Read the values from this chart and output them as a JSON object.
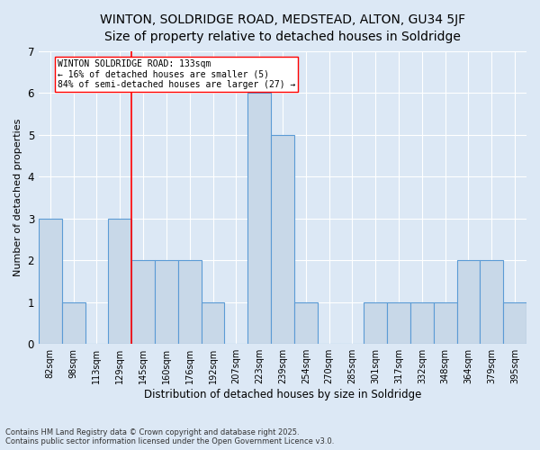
{
  "title1": "WINTON, SOLDRIDGE ROAD, MEDSTEAD, ALTON, GU34 5JF",
  "title2": "Size of property relative to detached houses in Soldridge",
  "xlabel": "Distribution of detached houses by size in Soldridge",
  "ylabel": "Number of detached properties",
  "footnote1": "Contains HM Land Registry data © Crown copyright and database right 2025.",
  "footnote2": "Contains public sector information licensed under the Open Government Licence v3.0.",
  "categories": [
    "82sqm",
    "98sqm",
    "113sqm",
    "129sqm",
    "145sqm",
    "160sqm",
    "176sqm",
    "192sqm",
    "207sqm",
    "223sqm",
    "239sqm",
    "254sqm",
    "270sqm",
    "285sqm",
    "301sqm",
    "317sqm",
    "332sqm",
    "348sqm",
    "364sqm",
    "379sqm",
    "395sqm"
  ],
  "values": [
    3,
    1,
    0,
    3,
    2,
    2,
    2,
    1,
    0,
    6,
    5,
    1,
    0,
    0,
    1,
    1,
    1,
    1,
    2,
    2,
    1
  ],
  "bar_color": "#c8d8e8",
  "bar_edge_color": "#5b9bd5",
  "reference_line_x": 3.5,
  "reference_line_label": "WINTON SOLDRIDGE ROAD: 133sqm",
  "annotation_line1": "← 16% of detached houses are smaller (5)",
  "annotation_line2": "84% of semi-detached houses are larger (27) →",
  "ylim": [
    0,
    7
  ],
  "yticks": [
    0,
    1,
    2,
    3,
    4,
    5,
    6,
    7
  ],
  "background_color": "#dce8f5",
  "grid_color": "white",
  "title_fontsize": 10,
  "subtitle_fontsize": 9
}
